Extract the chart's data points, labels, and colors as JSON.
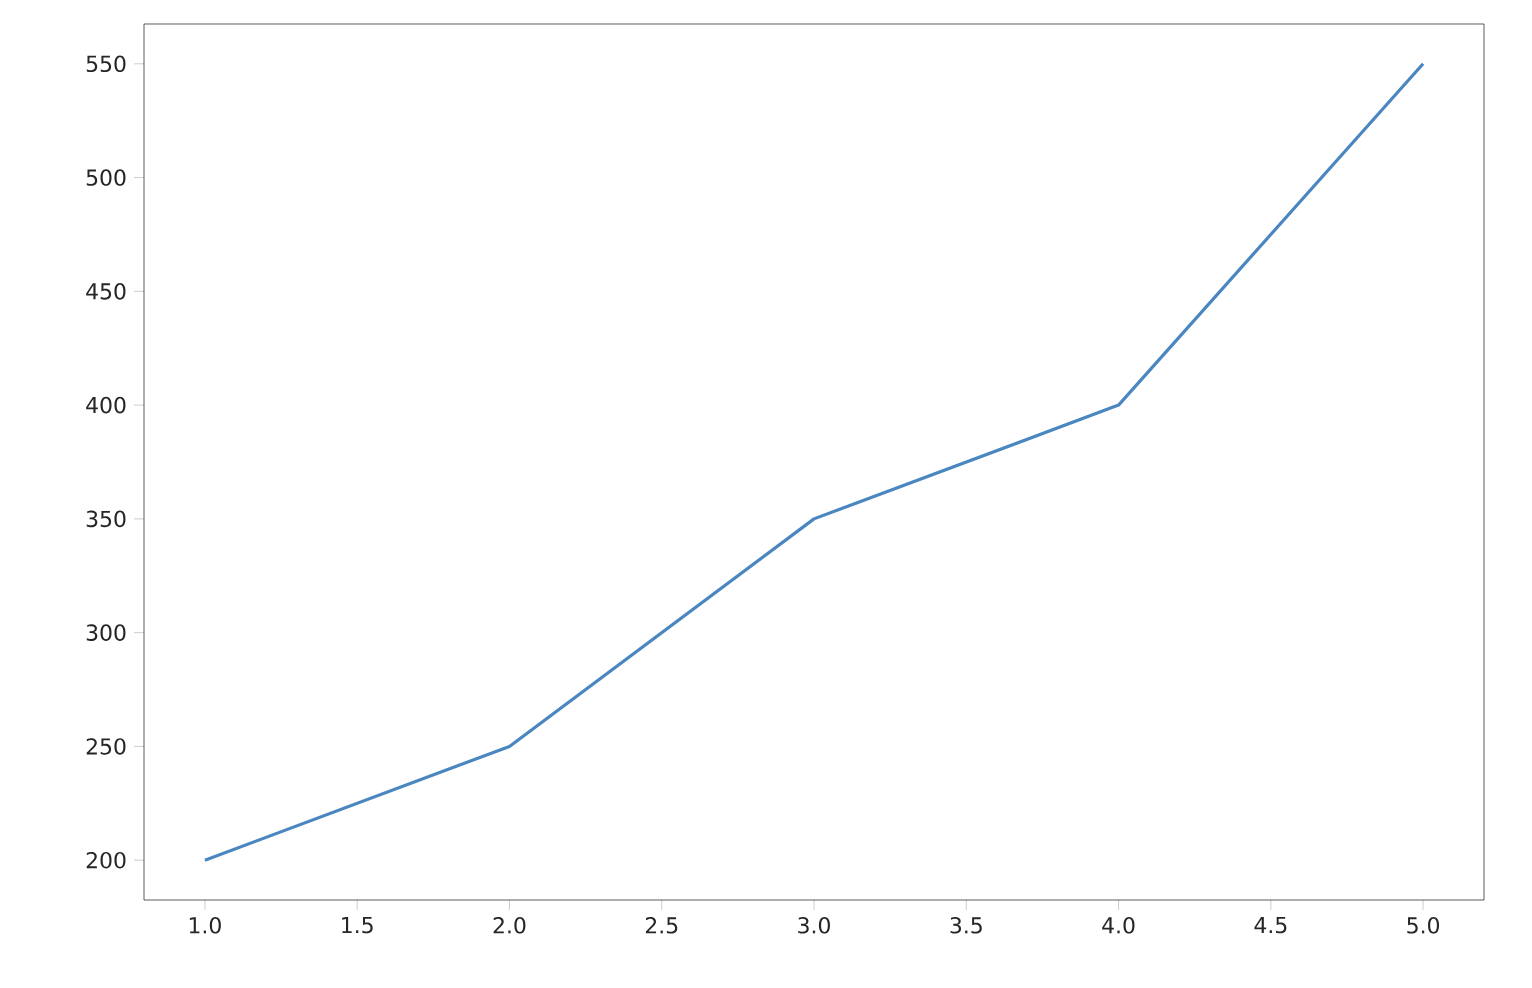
{
  "chart_data": {
    "type": "line",
    "x": [
      1,
      2,
      3,
      4,
      5
    ],
    "series": [
      {
        "color": "#4a86c0",
        "values": [
          200,
          250,
          350,
          400,
          550
        ]
      }
    ],
    "xlim": [
      0.8,
      5.2
    ],
    "ylim": [
      182.5,
      567.5
    ],
    "xticks": [
      {
        "value": 1,
        "label": "1.0"
      },
      {
        "value": 1.5,
        "label": "1.5"
      },
      {
        "value": 2,
        "label": "2.0"
      },
      {
        "value": 2.5,
        "label": "2.5"
      },
      {
        "value": 3,
        "label": "3.0"
      },
      {
        "value": 3.5,
        "label": "3.5"
      },
      {
        "value": 4,
        "label": "4.0"
      },
      {
        "value": 4.5,
        "label": "4.5"
      },
      {
        "value": 5,
        "label": "5.0"
      }
    ],
    "yticks": [
      200,
      250,
      300,
      350,
      400,
      450,
      500,
      550
    ]
  }
}
